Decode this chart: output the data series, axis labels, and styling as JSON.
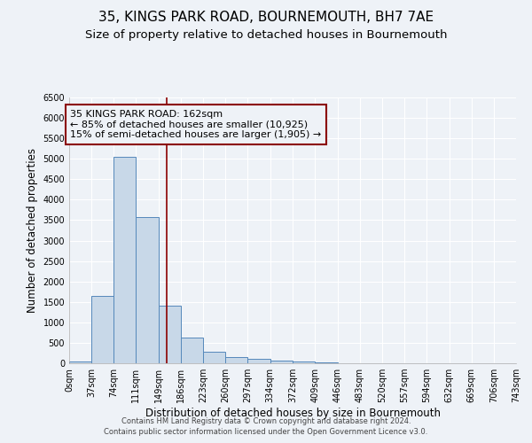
{
  "title": "35, KINGS PARK ROAD, BOURNEMOUTH, BH7 7AE",
  "subtitle": "Size of property relative to detached houses in Bournemouth",
  "xlabel": "Distribution of detached houses by size in Bournemouth",
  "ylabel": "Number of detached properties",
  "bin_edges": [
    0,
    37,
    74,
    111,
    149,
    186,
    223,
    260,
    297,
    334,
    372,
    409,
    446,
    483,
    520,
    557,
    594,
    632,
    669,
    706,
    743
  ],
  "bar_heights": [
    50,
    1650,
    5050,
    3580,
    1400,
    620,
    290,
    150,
    100,
    65,
    40,
    30,
    0,
    0,
    0,
    0,
    0,
    0,
    0,
    0
  ],
  "bar_color": "#c8d8e8",
  "bar_edge_color": "#5588bb",
  "vline_x": 162,
  "vline_color": "#8b0000",
  "ylim": [
    0,
    6500
  ],
  "annotation_line1": "35 KINGS PARK ROAD: 162sqm",
  "annotation_line2": "← 85% of detached houses are smaller (10,925)",
  "annotation_line3": "15% of semi-detached houses are larger (1,905) →",
  "annotation_box_color": "#8b0000",
  "background_color": "#eef2f7",
  "grid_color": "#ffffff",
  "footer_line1": "Contains HM Land Registry data © Crown copyright and database right 2024.",
  "footer_line2": "Contains public sector information licensed under the Open Government Licence v3.0.",
  "title_fontsize": 11,
  "subtitle_fontsize": 9.5,
  "tick_label_fontsize": 7,
  "ylabel_fontsize": 8.5,
  "xlabel_fontsize": 8.5,
  "annotation_fontsize": 8,
  "footer_fontsize": 6
}
